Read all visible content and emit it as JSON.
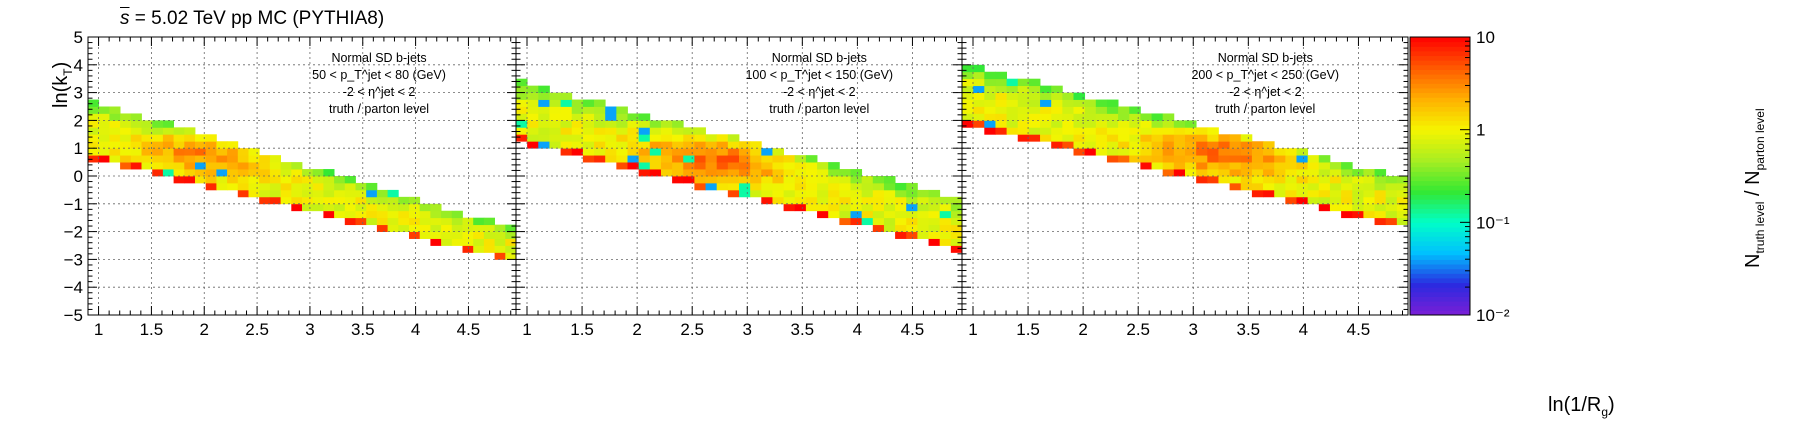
{
  "title": {
    "prefix": "s",
    "text": " = 5.02 TeV pp MC (PYTHIA8)"
  },
  "axes": {
    "ylabel_main": "ln(k",
    "ylabel_sub": "T",
    "ylabel_end": ")",
    "xlabel_main": "ln(1/R",
    "xlabel_sub": "g",
    "xlabel_end": ")",
    "zlabel_main": "N",
    "zlabel_sub1": "truth level",
    "zlabel_mid": " / N",
    "zlabel_sub2": "parton level"
  },
  "colors": {
    "palette": [
      "#7b1fd6",
      "#2a2ae0",
      "#00c0ff",
      "#00ffc8",
      "#33e833",
      "#a8ee22",
      "#f5f500",
      "#ffb000",
      "#ff5a00",
      "#ff0000"
    ]
  },
  "chart_data": {
    "type": "heatmap",
    "x_range": [
      0.9,
      4.95
    ],
    "y_range": [
      -5,
      5
    ],
    "x_ticks": [
      "1",
      "1.5",
      "2",
      "2.5",
      "3",
      "3.5",
      "4",
      "4.5"
    ],
    "y_ticks": [
      "−5",
      "−4",
      "−3",
      "−2",
      "−1",
      "0",
      "1",
      "2",
      "3",
      "4",
      "5"
    ],
    "z_scale": "log",
    "z_range": [
      0.01,
      10
    ],
    "z_ticks": [
      "10⁻²",
      "10⁻¹",
      "1",
      "10"
    ],
    "grid": true,
    "panels": [
      {
        "legend": [
          "Normal SD b-jets",
          "50 < p_T^jet < 80 (GeV)",
          "-2 < η^jet < 2",
          "truth / parton level"
        ],
        "band_x_start": 0.95,
        "band_x_end": 4.95,
        "band_top_start": 2.7,
        "band_top_end": -1.9,
        "band_bottom_start": 0.6,
        "band_bottom_end": -3.1,
        "peak_ln_inv_rg": 2.2,
        "peak_ln_kt": 1.0,
        "peak_ratio": 4.0
      },
      {
        "legend": [
          "Normal SD b-jets",
          "100 < p_T^jet < 150 (GeV)",
          "-2 < η^jet < 2",
          "truth / parton level"
        ],
        "band_x_start": 0.95,
        "band_x_end": 4.95,
        "band_top_start": 3.4,
        "band_top_end": -0.8,
        "band_bottom_start": 1.2,
        "band_bottom_end": -2.7,
        "peak_ln_inv_rg": 2.8,
        "peak_ln_kt": 0.8,
        "peak_ratio": 4.5
      },
      {
        "legend": [
          "Normal SD b-jets",
          "200 < p_T^jet < 250 (GeV)",
          "-2 < η^jet < 2",
          "truth / parton level"
        ],
        "band_x_start": 0.95,
        "band_x_end": 4.95,
        "band_top_start": 4.0,
        "band_top_end": -0.1,
        "band_bottom_start": 1.8,
        "band_bottom_end": -1.9,
        "peak_ln_inv_rg": 3.4,
        "peak_ln_kt": 1.0,
        "peak_ratio": 5.0
      }
    ]
  }
}
